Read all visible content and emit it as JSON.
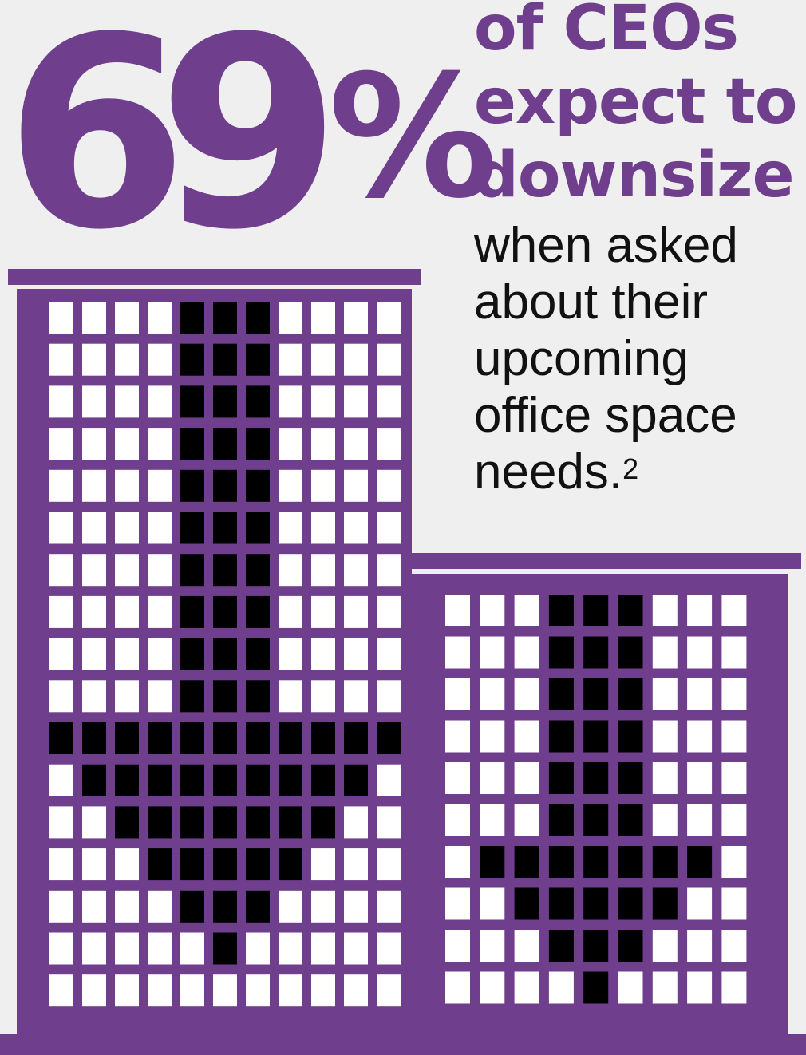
{
  "stat": {
    "number": "69",
    "percent": "%"
  },
  "headline": {
    "line1": "of CEOs",
    "line2": "expect to",
    "line3": "downsize"
  },
  "body": {
    "line1": "when asked",
    "line2": "about their",
    "line3": "upcoming",
    "line4": "office space",
    "line5": "needs.",
    "footnote": "2"
  },
  "colors": {
    "purple": "#6f3e8c",
    "background": "#efefef",
    "window": "#ffffff",
    "arrow": "#000000"
  },
  "icons": {
    "left_building": "tall-office-building-down-arrow-icon",
    "right_building": "short-office-building-down-arrow-icon"
  }
}
